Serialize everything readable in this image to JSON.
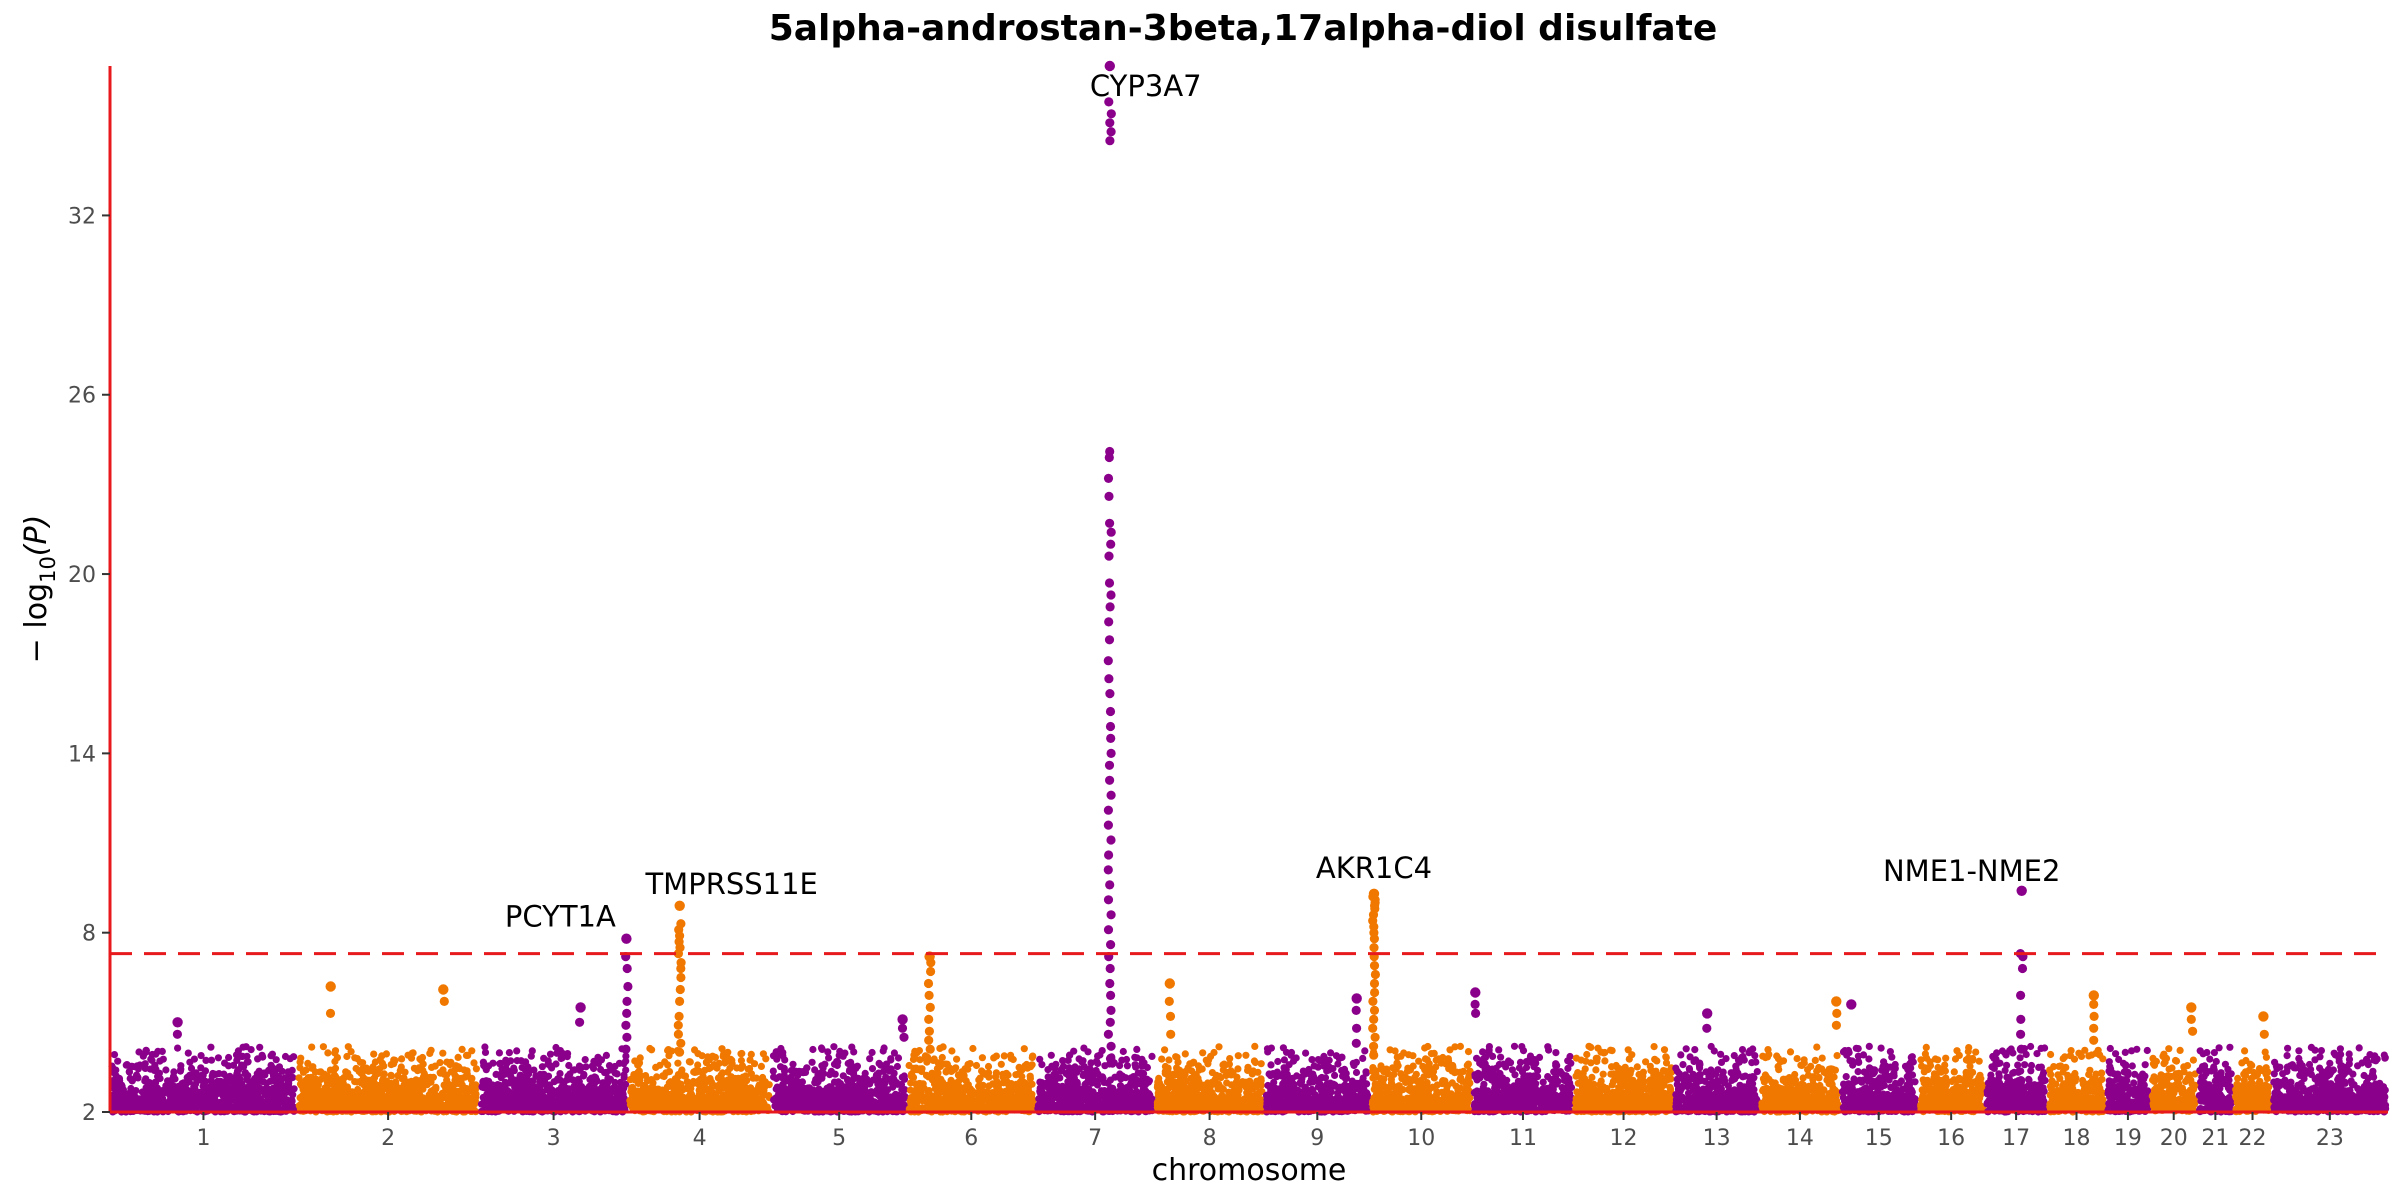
{
  "chart_data": {
    "type": "scatter",
    "subtype": "manhattan",
    "title": "5alpha-androstan-3beta,17alpha-diol disulfate",
    "xlabel": "chromosome",
    "ylabel": "− log10(P)",
    "ylabel_parts": {
      "prefix": "− log",
      "sub": "10",
      "suffix": "(P)"
    },
    "ylim": [
      2,
      37
    ],
    "yticks": [
      "2",
      "8",
      "14",
      "20",
      "26",
      "32"
    ],
    "significance_threshold": 7.3,
    "threshold_style": "dashed",
    "grid": false,
    "colors": {
      "odd": "#8b008b",
      "even": "#f07800",
      "threshold": "#e8191c",
      "axis": "#e8191c"
    },
    "chromosomes": [
      {
        "label": "1",
        "length": 249
      },
      {
        "label": "2",
        "length": 243
      },
      {
        "label": "3",
        "length": 198
      },
      {
        "label": "4",
        "length": 191
      },
      {
        "label": "5",
        "length": 181
      },
      {
        "label": "6",
        "length": 171
      },
      {
        "label": "7",
        "length": 159
      },
      {
        "label": "8",
        "length": 146
      },
      {
        "label": "9",
        "length": 141
      },
      {
        "label": "10",
        "length": 136
      },
      {
        "label": "11",
        "length": 135
      },
      {
        "label": "12",
        "length": 133
      },
      {
        "label": "13",
        "length": 115
      },
      {
        "label": "14",
        "length": 107
      },
      {
        "label": "15",
        "length": 103
      },
      {
        "label": "16",
        "length": 90
      },
      {
        "label": "17",
        "length": 83
      },
      {
        "label": "18",
        "length": 78
      },
      {
        "label": "19",
        "length": 59
      },
      {
        "label": "20",
        "length": 63
      },
      {
        "label": "21",
        "length": 48
      },
      {
        "label": "22",
        "length": 51
      },
      {
        "label": "23",
        "length": 155
      }
    ],
    "annotations": [
      {
        "label": "CYP3A7",
        "chr": "7",
        "pos": 99,
        "y": 37
      },
      {
        "label": "PCYT1A",
        "chr": "3",
        "pos": 196,
        "y": 7.8
      },
      {
        "label": "TMPRSS11E",
        "chr": "4",
        "pos": 69,
        "y": 8.9
      },
      {
        "label": "AKR1C4",
        "chr": "10",
        "pos": 5,
        "y": 9.3
      },
      {
        "label": "NME1-NME2",
        "chr": "17",
        "pos": 49,
        "y": 9.4
      }
    ],
    "peaks": [
      {
        "chr": "7",
        "pos": 99,
        "top": 37,
        "values": [
          37.0,
          35.8,
          35.4,
          35.1,
          34.8,
          34.5,
          24.1,
          23.9,
          23.2,
          22.6,
          21.7,
          21.4,
          21.0,
          20.6,
          19.7,
          19.3,
          18.9,
          18.4,
          17.8,
          17.1,
          16.5,
          16.0,
          15.4,
          14.9,
          14.5,
          14.0,
          13.6,
          13.1,
          12.6,
          12.1,
          11.6,
          11.1,
          10.6,
          10.1,
          9.6,
          9.1,
          8.6,
          8.1,
          7.6,
          7.2,
          6.8,
          6.3,
          5.9,
          5.4,
          5.0,
          4.6,
          4.2,
          3.8
        ]
      },
      {
        "chr": "10",
        "pos": 5,
        "top": 9.3,
        "values": [
          9.3,
          9.2,
          9.1,
          9.0,
          8.9,
          8.8,
          8.6,
          8.4,
          8.2,
          8.0,
          7.8,
          7.5,
          7.2,
          6.9,
          6.6,
          6.3,
          6.0,
          5.7,
          5.4,
          5.1,
          4.8,
          4.5,
          4.2,
          3.9
        ]
      },
      {
        "chr": "17",
        "pos": 49,
        "top": 9.4,
        "values": [
          9.4,
          7.3,
          7.2,
          6.8,
          5.9,
          5.1,
          4.6,
          4.1
        ]
      },
      {
        "chr": "4",
        "pos": 69,
        "top": 8.9,
        "values": [
          8.9,
          8.3,
          8.1,
          7.9,
          7.7,
          7.5,
          7.3,
          7.0,
          6.8,
          6.5,
          6.1,
          5.7,
          5.2,
          4.9,
          4.6,
          4.3,
          4.0
        ]
      },
      {
        "chr": "3",
        "pos": 196,
        "top": 7.8,
        "values": [
          7.8,
          7.2,
          6.8,
          6.2,
          5.7,
          5.3,
          4.9,
          4.5,
          4.1
        ]
      },
      {
        "chr": "6",
        "pos": 30,
        "top": 7.2,
        "values": [
          7.2,
          7.0,
          6.7,
          6.3,
          5.9,
          5.5,
          5.1,
          4.7,
          4.4,
          4.1
        ]
      },
      {
        "chr": "8",
        "pos": 20,
        "top": 6.3,
        "values": [
          6.3,
          5.7,
          5.2,
          4.6
        ]
      },
      {
        "chr": "2",
        "pos": 45,
        "top": 6.2,
        "values": [
          6.2,
          5.3
        ]
      },
      {
        "chr": "2",
        "pos": 195,
        "top": 6.1,
        "values": [
          6.1,
          5.7
        ]
      },
      {
        "chr": "9",
        "pos": 123,
        "top": 5.8,
        "values": [
          5.8,
          5.4,
          4.8,
          4.3
        ]
      },
      {
        "chr": "11",
        "pos": 4,
        "top": 6.0,
        "values": [
          6.0,
          5.6,
          5.3
        ]
      },
      {
        "chr": "14",
        "pos": 102,
        "top": 5.7,
        "values": [
          5.7,
          5.3,
          4.9
        ]
      },
      {
        "chr": "15",
        "pos": 15,
        "top": 5.6,
        "values": [
          5.6
        ]
      },
      {
        "chr": "18",
        "pos": 62,
        "top": 5.9,
        "values": [
          5.9,
          5.6,
          5.2,
          4.8,
          4.4
        ]
      },
      {
        "chr": "20",
        "pos": 55,
        "top": 5.5,
        "values": [
          5.5,
          5.1,
          4.7
        ]
      },
      {
        "chr": "22",
        "pos": 40,
        "top": 5.2,
        "values": [
          5.2,
          4.6
        ]
      },
      {
        "chr": "5",
        "pos": 175,
        "top": 5.1,
        "values": [
          5.1,
          4.8,
          4.5
        ]
      },
      {
        "chr": "1",
        "pos": 90,
        "top": 5.0,
        "values": [
          5.0,
          4.6
        ]
      },
      {
        "chr": "3",
        "pos": 135,
        "top": 5.5,
        "values": [
          5.5,
          5.0
        ]
      },
      {
        "chr": "13",
        "pos": 45,
        "top": 5.3,
        "values": [
          5.3,
          4.8
        ]
      }
    ]
  }
}
